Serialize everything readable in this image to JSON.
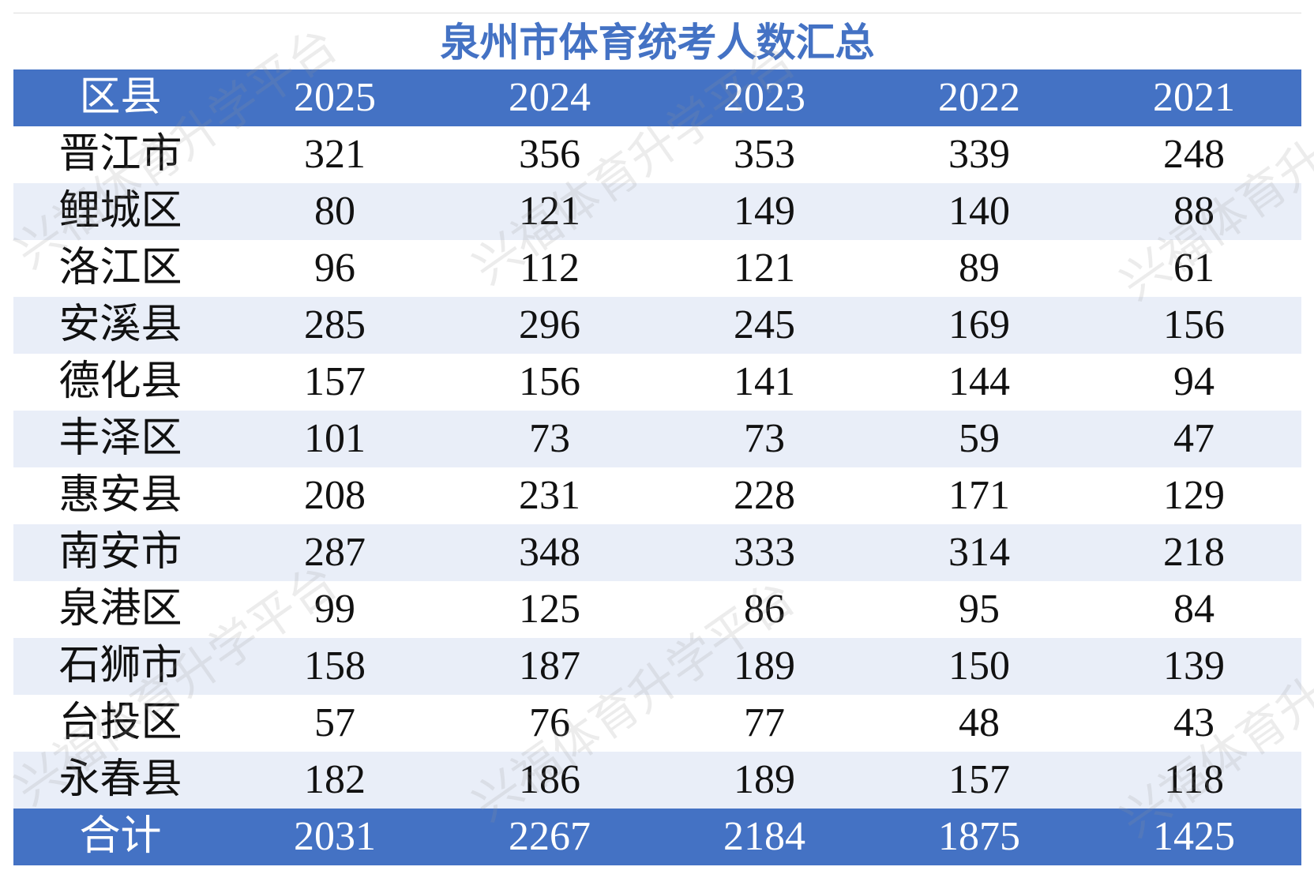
{
  "title": "泉州市体育统考人数汇总",
  "watermark": "兴福体育升学平台",
  "table": {
    "header": [
      "区县",
      "2025",
      "2024",
      "2023",
      "2022",
      "2021"
    ],
    "rows": [
      [
        "晋江市",
        321,
        356,
        353,
        339,
        248
      ],
      [
        "鲤城区",
        80,
        121,
        149,
        140,
        88
      ],
      [
        "洛江区",
        96,
        112,
        121,
        89,
        61
      ],
      [
        "安溪县",
        285,
        296,
        245,
        169,
        156
      ],
      [
        "德化县",
        157,
        156,
        141,
        144,
        94
      ],
      [
        "丰泽区",
        101,
        73,
        73,
        59,
        47
      ],
      [
        "惠安县",
        208,
        231,
        228,
        171,
        129
      ],
      [
        "南安市",
        287,
        348,
        333,
        314,
        218
      ],
      [
        "泉港区",
        99,
        125,
        86,
        95,
        84
      ],
      [
        "石狮市",
        158,
        187,
        189,
        150,
        139
      ],
      [
        "台投区",
        57,
        76,
        77,
        48,
        43
      ],
      [
        "永春县",
        182,
        186,
        189,
        157,
        118
      ]
    ],
    "total": [
      "合计",
      2031,
      2267,
      2184,
      1875,
      1425
    ]
  }
}
